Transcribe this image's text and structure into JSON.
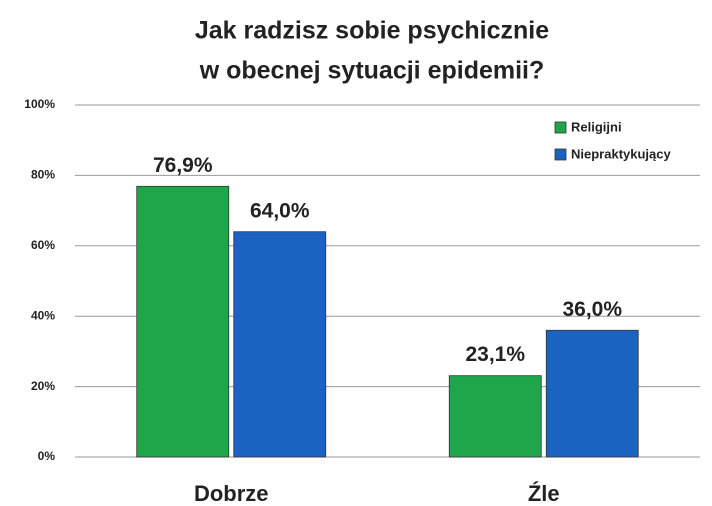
{
  "chart_data": {
    "type": "bar",
    "title": [
      "Jak radzisz sobie psychicznie",
      "w obecnej sytuacji epidemii?"
    ],
    "categories": [
      "Dobrze",
      "Źle"
    ],
    "series": [
      {
        "name": "Religijni",
        "color": "#1fa64a",
        "values": [
          76.9,
          23.1
        ],
        "value_labels": [
          "76,9%",
          "23,1%"
        ]
      },
      {
        "name": "Niepraktykujący",
        "color": "#1a63c0",
        "values": [
          64.0,
          36.0
        ],
        "value_labels": [
          "64,0%",
          "36,0%"
        ]
      }
    ],
    "ylim": [
      0,
      100
    ],
    "yticks": [
      {
        "value": 0,
        "label": "0%"
      },
      {
        "value": 20,
        "label": "20%"
      },
      {
        "value": 40,
        "label": "40%"
      },
      {
        "value": 60,
        "label": "60%"
      },
      {
        "value": 80,
        "label": "80%"
      },
      {
        "value": 100,
        "label": "100%"
      }
    ],
    "grid": true,
    "legend": "upper right"
  }
}
